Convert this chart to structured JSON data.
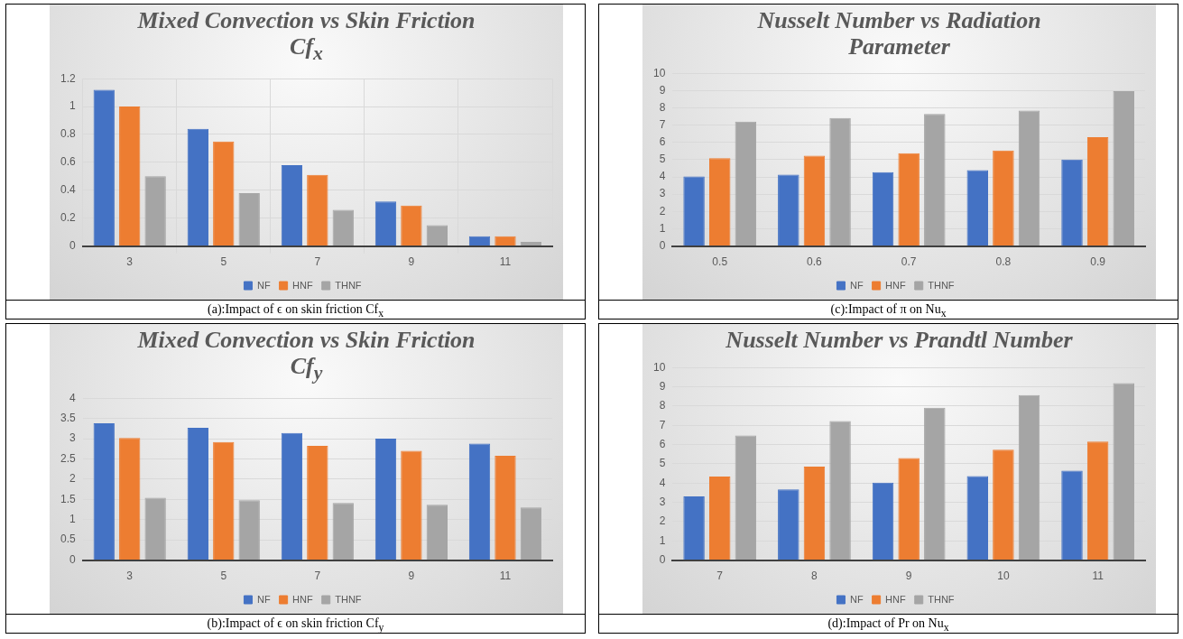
{
  "chart_data": [
    {
      "type": "bar",
      "title": "Mixed Convection vs Skin Friction Cf$_{x}$",
      "categories": [
        "3",
        "5",
        "7",
        "9",
        "11"
      ],
      "series": [
        {
          "name": "NF",
          "color": "#4472c4",
          "values": [
            1.12,
            0.84,
            0.58,
            0.32,
            0.07
          ]
        },
        {
          "name": "HNF",
          "color": "#ed7d31",
          "values": [
            1.0,
            0.75,
            0.51,
            0.29,
            0.07
          ]
        },
        {
          "name": "THNF",
          "color": "#a5a5a5",
          "values": [
            0.5,
            0.38,
            0.26,
            0.15,
            0.03
          ]
        }
      ],
      "ylim": [
        0,
        1.2
      ],
      "yticks": [
        0,
        0.2,
        0.4,
        0.6,
        0.8,
        1,
        1.2
      ],
      "grid": true,
      "legend": "bottom",
      "annotations": [
        "(a):Impact of ϵ on skin friction Cf$_{x}$"
      ]
    },
    {
      "type": "bar",
      "title": "Nusselt Number vs Radiation Parameter",
      "categories": [
        "0.5",
        "0.6",
        "0.7",
        "0.8",
        "0.9"
      ],
      "series": [
        {
          "name": "NF",
          "color": "#4472c4",
          "values": [
            4.03,
            4.13,
            4.28,
            4.39,
            5.01
          ]
        },
        {
          "name": "HNF",
          "color": "#ed7d31",
          "values": [
            5.08,
            5.23,
            5.38,
            5.53,
            6.3
          ]
        },
        {
          "name": "THNF",
          "color": "#a5a5a5",
          "values": [
            7.2,
            7.41,
            7.65,
            7.84,
            8.97
          ]
        }
      ],
      "ylim": [
        0,
        10
      ],
      "yticks": [
        0,
        1,
        2,
        3,
        4,
        5,
        6,
        7,
        8,
        9,
        10
      ],
      "grid": "y",
      "legend": "bottom",
      "annotations": [
        "(c):Impact of π on Nu$_{x}$"
      ]
    },
    {
      "type": "bar",
      "title": "Mixed Convection vs Skin Friction Cf$_{y}$",
      "categories": [
        "3",
        "5",
        "7",
        "9",
        "11"
      ],
      "series": [
        {
          "name": "NF",
          "color": "#4472c4",
          "values": [
            3.38,
            3.27,
            3.14,
            3.0,
            2.88
          ]
        },
        {
          "name": "HNF",
          "color": "#ed7d31",
          "values": [
            3.02,
            2.92,
            2.82,
            2.7,
            2.58
          ]
        },
        {
          "name": "THNF",
          "color": "#a5a5a5",
          "values": [
            1.54,
            1.48,
            1.41,
            1.37,
            1.3
          ]
        }
      ],
      "ylim": [
        0,
        4
      ],
      "yticks": [
        0,
        0.5,
        1,
        1.5,
        2,
        2.5,
        3,
        3.5,
        4
      ],
      "grid": "y",
      "legend": "bottom",
      "annotations": [
        "(b):Impact of ϵ on skin friction Cf$_{y}$"
      ]
    },
    {
      "type": "bar",
      "title": "Nusselt Number vs Prandtl Number",
      "categories": [
        "7",
        "8",
        "9",
        "10",
        "11"
      ],
      "series": [
        {
          "name": "NF",
          "color": "#4472c4",
          "values": [
            3.31,
            3.67,
            4.02,
            4.36,
            4.64
          ]
        },
        {
          "name": "HNF",
          "color": "#ed7d31",
          "values": [
            4.34,
            4.85,
            5.3,
            5.73,
            6.15
          ]
        },
        {
          "name": "THNF",
          "color": "#a5a5a5",
          "values": [
            6.47,
            7.22,
            7.91,
            8.57,
            9.19
          ]
        }
      ],
      "ylim": [
        0,
        10
      ],
      "yticks": [
        0,
        1,
        2,
        3,
        4,
        5,
        6,
        7,
        8,
        9,
        10
      ],
      "grid": "y",
      "legend": "bottom",
      "annotations": [
        "(d):Impact of Pr on Nu$_{x}$"
      ]
    }
  ]
}
